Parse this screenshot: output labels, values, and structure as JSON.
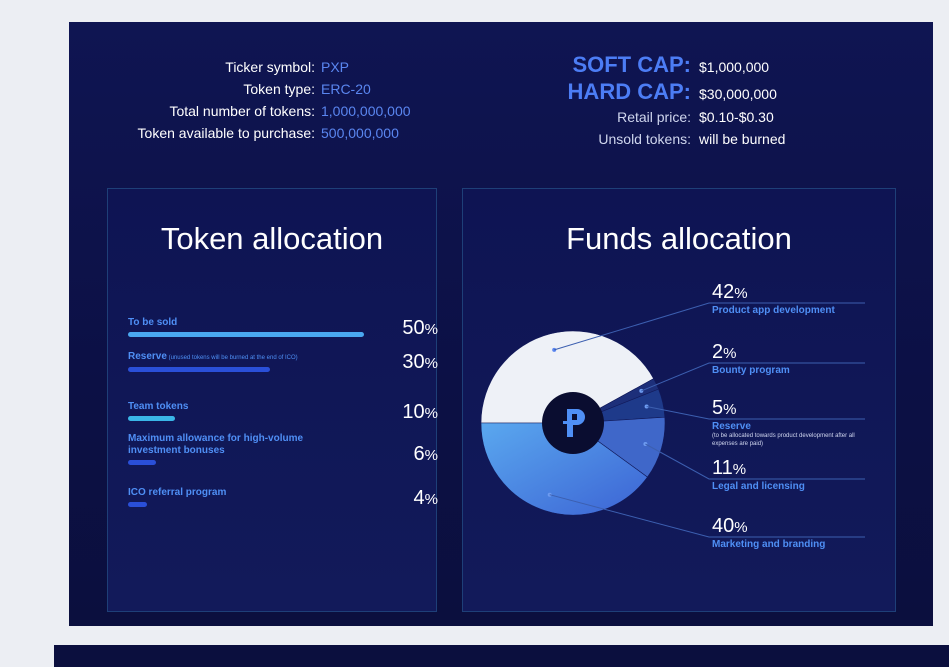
{
  "token_info": [
    {
      "label": "Ticker symbol:",
      "value": "PXP"
    },
    {
      "label": "Token type:",
      "value": "ERC-20"
    },
    {
      "label": "Total number of tokens:",
      "value": "1,000,000,000"
    },
    {
      "label": "Token available to purchase:",
      "value": "500,000,000"
    }
  ],
  "caps": [
    {
      "label": "SOFT CAP:",
      "value": "$1,000,000"
    },
    {
      "label": "HARD CAP:",
      "value": "$30,000,000"
    }
  ],
  "pricing": [
    {
      "label": "Retail price:",
      "value": "$0.10-$0.30"
    },
    {
      "label": "Unsold tokens:",
      "value": "will be burned"
    }
  ],
  "colors": {
    "panel_bg": "#0f1552",
    "accent_blue": "#4f8ff5",
    "bar_light": "#4aa8f0",
    "bar_dark": "#2a4fd8"
  },
  "chart_data": [
    {
      "type": "bar",
      "title": "Token allocation",
      "categories": [
        "To be sold",
        "Reserve",
        "Team tokens",
        "Maximum allowance for high-volume investment bonuses",
        "ICO referral program"
      ],
      "notes": [
        "",
        "(unused tokens will be burned at the end of ICO)",
        "",
        "",
        ""
      ],
      "values": [
        50,
        30,
        10,
        6,
        4
      ],
      "unit": "%"
    },
    {
      "type": "pie",
      "title": "Funds allocation",
      "categories": [
        "Product app development",
        "Bounty program",
        "Reserve",
        "Legal and licensing",
        "Marketing and branding"
      ],
      "notes": [
        "",
        "",
        "(to be allocated towards product development after all expenses are paid)",
        "",
        ""
      ],
      "values": [
        42,
        2,
        5,
        11,
        40
      ],
      "unit": "%",
      "center_icon": "pxp-logo-icon"
    }
  ]
}
